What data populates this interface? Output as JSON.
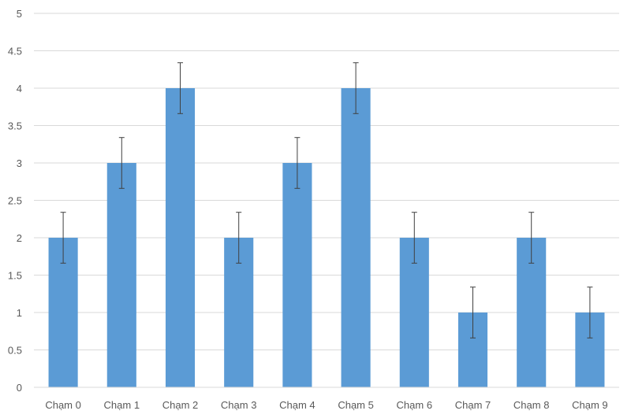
{
  "chart_data": {
    "type": "bar",
    "categories": [
      "Chạm 0",
      "Chạm 1",
      "Chạm 2",
      "Chạm 3",
      "Chạm 4",
      "Chạm 5",
      "Chạm 6",
      "Chạm 7",
      "Chạm 8",
      "Chạm 9"
    ],
    "values": [
      2,
      3,
      4,
      2,
      3,
      4,
      2,
      1,
      2,
      1
    ],
    "error": [
      0.34,
      0.34,
      0.34,
      0.34,
      0.34,
      0.34,
      0.34,
      0.34,
      0.34,
      0.34
    ],
    "title": "",
    "xlabel": "",
    "ylabel": "",
    "ylim": [
      0,
      5
    ],
    "yticks": [
      "0",
      "0.5",
      "1",
      "1.5",
      "2",
      "2.5",
      "3",
      "3.5",
      "4",
      "4.5",
      "5"
    ],
    "grid": "horizontal",
    "legend": "none",
    "colors": {
      "bar": "#5b9bd5",
      "error_bar": "#404040",
      "grid": "#d9d9d9",
      "tick_text": "#595959"
    }
  }
}
